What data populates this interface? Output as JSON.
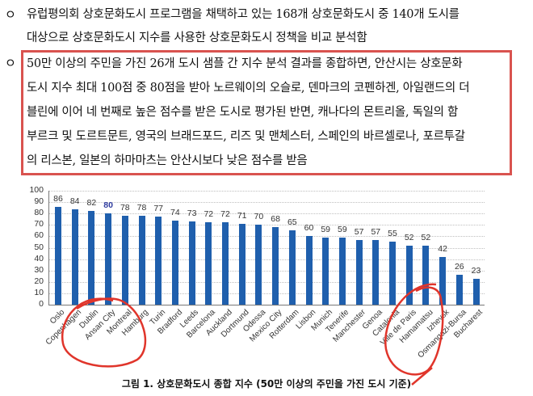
{
  "paragraph1": {
    "bullet": "ㅇ",
    "lines": [
      "유럽평의회 상호문화도시 프로그램을 채택하고 있는 168개 상호문화도시 중 140개 도시를",
      "대상으로 상호문화도시 지수를 사용한 상호문화도시 정책을 비교 분석함"
    ]
  },
  "paragraph2": {
    "bullet": "ㅇ",
    "lines": [
      "50만 이상의 주민을 가진 26개 도시 샘플 간 지수 분석 결과를 종합하면, 안산시는 상호문화",
      "도시 지수 최대 100점 중 80점을 받아 노르웨이의 오슬로, 덴마크의 코펜하겐, 아일랜드의 더",
      "블린에 이어 네 번째로 높은 점수를 받은 도시로 평가된 반면, 캐나다의 몬트리올, 독일의 함",
      "부르크 및 도르트문트, 영국의 브래드포드, 리즈 및 맨체스터, 스페인의 바르셀로나, 포르투갈",
      "의 리스본, 일본의 하마마츠는 안산시보다 낮은 점수를 받음"
    ],
    "highlight_box_color": "#d9534f"
  },
  "chart_data": {
    "type": "bar",
    "title": "",
    "xlabel": "",
    "ylabel": "",
    "ylim": [
      0,
      100
    ],
    "yticks": [
      0,
      10,
      20,
      30,
      40,
      50,
      60,
      70,
      80,
      90,
      100
    ],
    "grid": true,
    "bar_color": "#1f5fad",
    "highlight_label_color": "#2d3a9e",
    "highlight_index": 3,
    "categories": [
      "Oslo",
      "Copenhagen",
      "Dublin",
      "Ansan City",
      "Montreal",
      "Hamburg",
      "Turin",
      "Bradford",
      "Leeds",
      "Barcelona",
      "Auckland",
      "Dortmund",
      "Odessa",
      "Mexico City",
      "Rotterdam",
      "Lisbon",
      "Munich",
      "Tenerife",
      "Manchester",
      "Genoa",
      "Catalonia",
      "Ville de Paris",
      "Hamamatsu",
      "Izhevsk",
      "Osmangazi-Bursa",
      "Bucharest"
    ],
    "values": [
      86,
      84,
      82,
      80,
      78,
      78,
      77,
      74,
      73,
      72,
      72,
      71,
      70,
      68,
      65,
      60,
      59,
      59,
      57,
      57,
      55,
      52,
      52,
      42,
      26,
      23
    ],
    "annotations": [
      "red hand-drawn circle around Dublin–Hamburg labels",
      "red hand-drawn circle around Ville de Paris–Izhevsk labels"
    ]
  },
  "caption": "그림 1. 상호문화도시 종합 지수 (50만 이상의 주민을 가진 도시 기준)"
}
